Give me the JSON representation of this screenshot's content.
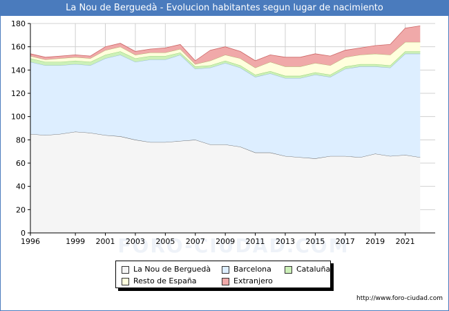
{
  "title": "La Nou de Berguedà - Evolucion habitantes segun lugar de nacimiento",
  "source": "http://www.foro-ciudad.com",
  "watermark": "FORO-CIUDAD.COM",
  "colors": {
    "nou": "#f5f5f5",
    "barcelona": "#ddeeff",
    "cataluna": "#ccf0b8",
    "resto": "#ffffdd",
    "extranjero": "#f0a9a9",
    "grid": "#d0d0d0",
    "header": "#4a7bbd"
  },
  "chart_data": {
    "type": "area",
    "stacked": true,
    "x": [
      1996,
      1997,
      1998,
      1999,
      2000,
      2001,
      2002,
      2003,
      2004,
      2005,
      2006,
      2007,
      2008,
      2009,
      2010,
      2011,
      2012,
      2013,
      2014,
      2015,
      2016,
      2017,
      2018,
      2019,
      2020,
      2021,
      2022
    ],
    "xticks": [
      1996,
      1999,
      2001,
      2003,
      2005,
      2007,
      2009,
      2011,
      2013,
      2015,
      2017,
      2019,
      2021
    ],
    "yticks": [
      0,
      20,
      40,
      60,
      80,
      100,
      120,
      140,
      160,
      180
    ],
    "ylim": [
      0,
      180
    ],
    "xlim": [
      1996,
      2023
    ],
    "grid": true,
    "legend_position": "bottom",
    "series": [
      {
        "name": "La Nou de Berguedà",
        "color": "#f5f5f5",
        "stroke": "#555555",
        "values": [
          85,
          84,
          85,
          87,
          86,
          84,
          83,
          80,
          78,
          78,
          79,
          80,
          76,
          76,
          74,
          69,
          69,
          66,
          65,
          64,
          66,
          66,
          65,
          68,
          66,
          67,
          65
        ]
      },
      {
        "name": "Barcelona",
        "color": "#ddeeff",
        "stroke": "#88b0d8",
        "values": [
          62,
          60,
          59,
          58,
          58,
          66,
          70,
          67,
          71,
          71,
          74,
          61,
          66,
          70,
          68,
          65,
          68,
          67,
          68,
          72,
          68,
          75,
          78,
          75,
          76,
          87,
          89
        ]
      },
      {
        "name": "Cataluña",
        "color": "#ccf0b8",
        "stroke": "#88cc66",
        "values": [
          3,
          3,
          3,
          3,
          3,
          3,
          3,
          3,
          3,
          3,
          2,
          2,
          2,
          2,
          2,
          2,
          2,
          2,
          2,
          2,
          2,
          2,
          2,
          2,
          2,
          2,
          2
        ]
      },
      {
        "name": "Resto de España",
        "color": "#ffffdd",
        "stroke": "#aaaa66",
        "values": [
          2,
          2,
          3,
          3,
          3,
          4,
          4,
          3,
          3,
          3,
          3,
          2,
          4,
          5,
          6,
          6,
          8,
          8,
          8,
          8,
          8,
          8,
          8,
          9,
          9,
          8,
          8
        ]
      },
      {
        "name": "Extranjero",
        "color": "#f0a9a9",
        "stroke": "#cc6666",
        "values": [
          2,
          2,
          2,
          2,
          2,
          3,
          3,
          3,
          3,
          4,
          4,
          3,
          9,
          7,
          6,
          6,
          6,
          8,
          8,
          8,
          8,
          6,
          6,
          7,
          9,
          12,
          14
        ]
      }
    ]
  }
}
